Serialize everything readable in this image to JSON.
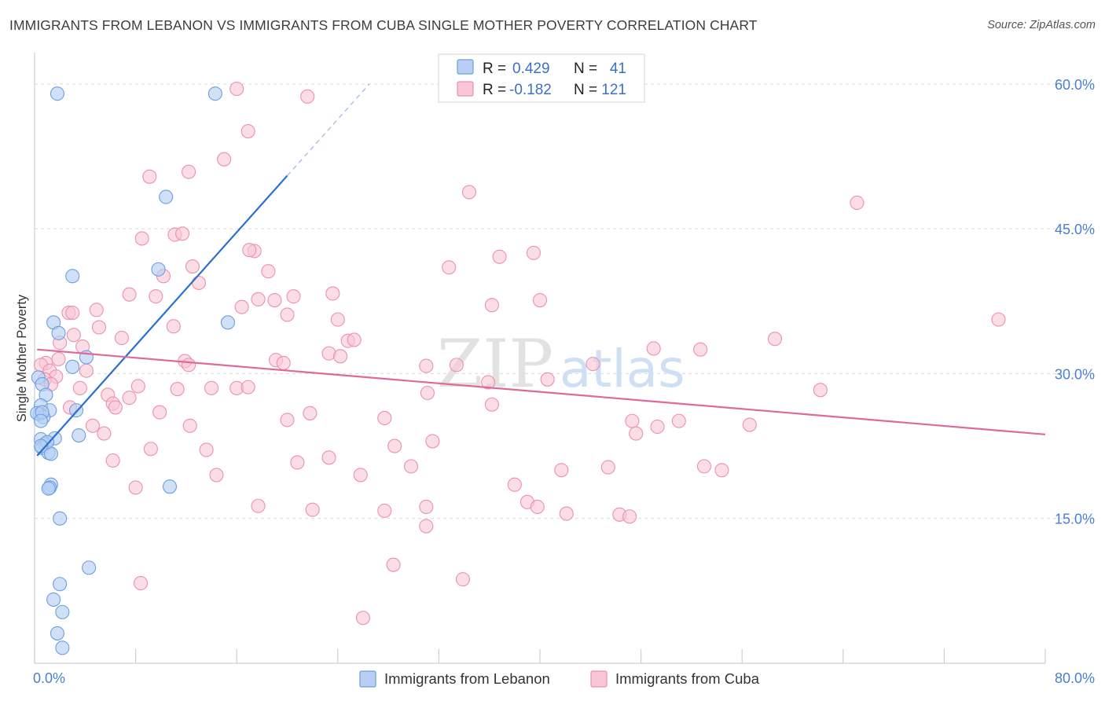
{
  "header": {
    "title": "IMMIGRANTS FROM LEBANON VS IMMIGRANTS FROM CUBA SINGLE MOTHER POVERTY CORRELATION CHART",
    "source": "Source: ZipAtlas.com"
  },
  "watermark": {
    "zip": "ZIP",
    "atlas": "atlas"
  },
  "colors": {
    "lebanon_fill": "#b7d0f2",
    "lebanon_stroke": "#6e9ee0",
    "lebanon_line": "#2a6fd0",
    "cuba_fill": "#f8c6d6",
    "cuba_stroke": "#ec90ae",
    "cuba_line": "#e0689a",
    "tick_label": "#4a7fd0",
    "grid": "#d9d9d9"
  },
  "legend_stats": [
    {
      "r_label": "R =",
      "r_value": "0.429",
      "n_label": "N =",
      "n_value": "41"
    },
    {
      "r_label": "R =",
      "r_value": "-0.182",
      "n_label": "N =",
      "n_value": "121"
    }
  ],
  "chart_data": {
    "type": "scatter",
    "title": "IMMIGRANTS FROM LEBANON VS IMMIGRANTS FROM CUBA SINGLE MOTHER POVERTY CORRELATION CHART",
    "xlabel": "",
    "ylabel": "Single Mother Poverty",
    "xlim": [
      0,
      80
    ],
    "ylim": [
      0,
      63
    ],
    "x_tick_labels": [
      "0.0%",
      "80.0%"
    ],
    "x_minor_ticks": [
      0,
      8,
      16,
      24,
      32,
      40,
      48,
      56,
      64,
      72,
      80
    ],
    "y_ticks": [
      15,
      30,
      45,
      60
    ],
    "y_tick_labels": [
      "15.0%",
      "30.0%",
      "45.0%",
      "60.0%"
    ],
    "grid": true,
    "legend_position": "bottom-center",
    "series": [
      {
        "name": "Immigrants from Lebanon",
        "R": 0.429,
        "N": 41,
        "trend": {
          "x0": 0.2,
          "y0": 21.5,
          "x1": 20.0,
          "y1": 50.5,
          "dash_to_x": 26.5,
          "dash_to_y": 60.0
        },
        "points": [
          [
            1.8,
            59.0
          ],
          [
            14.3,
            59.0
          ],
          [
            10.4,
            48.3
          ],
          [
            3.0,
            40.1
          ],
          [
            9.8,
            40.8
          ],
          [
            15.3,
            35.3
          ],
          [
            1.5,
            35.3
          ],
          [
            1.9,
            34.2
          ],
          [
            4.1,
            31.7
          ],
          [
            3.0,
            30.7
          ],
          [
            0.3,
            29.6
          ],
          [
            0.6,
            28.9
          ],
          [
            0.9,
            27.8
          ],
          [
            0.5,
            26.7
          ],
          [
            3.3,
            26.2
          ],
          [
            1.2,
            26.2
          ],
          [
            0.4,
            25.8
          ],
          [
            0.7,
            25.5
          ],
          [
            0.2,
            25.9
          ],
          [
            0.6,
            26.0
          ],
          [
            0.5,
            25.1
          ],
          [
            3.5,
            23.6
          ],
          [
            1.6,
            23.3
          ],
          [
            0.5,
            23.2
          ],
          [
            0.8,
            22.7
          ],
          [
            0.6,
            22.3
          ],
          [
            1.1,
            21.8
          ],
          [
            1.3,
            21.7
          ],
          [
            1.0,
            22.9
          ],
          [
            1.3,
            18.5
          ],
          [
            1.2,
            18.2
          ],
          [
            1.1,
            18.1
          ],
          [
            10.7,
            18.3
          ],
          [
            2.0,
            15.0
          ],
          [
            4.3,
            9.9
          ],
          [
            2.0,
            8.2
          ],
          [
            1.5,
            6.6
          ],
          [
            2.2,
            5.3
          ],
          [
            1.8,
            3.1
          ],
          [
            2.2,
            1.6
          ],
          [
            0.5,
            22.5
          ]
        ]
      },
      {
        "name": "Immigrants from Cuba",
        "R": -0.182,
        "N": 121,
        "trend": {
          "x0": 0.2,
          "y0": 32.5,
          "x1": 80.0,
          "y1": 23.7
        },
        "points": [
          [
            16.0,
            59.5
          ],
          [
            21.6,
            58.7
          ],
          [
            16.9,
            55.1
          ],
          [
            15.0,
            52.2
          ],
          [
            12.2,
            50.9
          ],
          [
            9.1,
            50.4
          ],
          [
            34.4,
            48.8
          ],
          [
            65.1,
            47.7
          ],
          [
            8.5,
            44.0
          ],
          [
            11.1,
            44.4
          ],
          [
            11.7,
            44.5
          ],
          [
            17.4,
            42.7
          ],
          [
            36.8,
            42.1
          ],
          [
            39.5,
            42.5
          ],
          [
            32.8,
            41.0
          ],
          [
            12.5,
            41.1
          ],
          [
            18.5,
            40.6
          ],
          [
            10.2,
            40.1
          ],
          [
            13.0,
            39.4
          ],
          [
            7.5,
            38.2
          ],
          [
            9.6,
            38.0
          ],
          [
            17.7,
            37.7
          ],
          [
            19.0,
            37.6
          ],
          [
            20.5,
            38.0
          ],
          [
            23.6,
            38.3
          ],
          [
            36.2,
            37.1
          ],
          [
            40.0,
            37.6
          ],
          [
            16.4,
            36.9
          ],
          [
            4.9,
            36.6
          ],
          [
            2.7,
            36.3
          ],
          [
            3.0,
            36.3
          ],
          [
            20.0,
            36.1
          ],
          [
            24.0,
            35.6
          ],
          [
            76.3,
            35.6
          ],
          [
            11.0,
            34.9
          ],
          [
            5.1,
            34.8
          ],
          [
            3.1,
            34.0
          ],
          [
            6.9,
            33.7
          ],
          [
            24.8,
            33.4
          ],
          [
            25.3,
            33.5
          ],
          [
            58.6,
            33.6
          ],
          [
            2.0,
            33.2
          ],
          [
            3.8,
            32.8
          ],
          [
            49.0,
            32.6
          ],
          [
            52.7,
            32.5
          ],
          [
            23.3,
            32.1
          ],
          [
            24.2,
            31.8
          ],
          [
            11.9,
            31.3
          ],
          [
            19.1,
            31.4
          ],
          [
            1.9,
            31.5
          ],
          [
            0.9,
            31.1
          ],
          [
            0.5,
            30.9
          ],
          [
            12.2,
            30.9
          ],
          [
            19.7,
            31.1
          ],
          [
            31.0,
            30.8
          ],
          [
            44.2,
            31.0
          ],
          [
            4.1,
            30.3
          ],
          [
            1.2,
            30.3
          ],
          [
            1.7,
            29.7
          ],
          [
            0.8,
            29.4
          ],
          [
            35.9,
            29.1
          ],
          [
            40.6,
            29.4
          ],
          [
            1.3,
            28.9
          ],
          [
            8.2,
            28.7
          ],
          [
            3.6,
            28.5
          ],
          [
            14.0,
            28.5
          ],
          [
            16.0,
            28.5
          ],
          [
            11.3,
            28.4
          ],
          [
            16.9,
            28.6
          ],
          [
            62.2,
            28.3
          ],
          [
            31.1,
            28.0
          ],
          [
            5.8,
            27.8
          ],
          [
            7.5,
            27.5
          ],
          [
            6.2,
            26.9
          ],
          [
            6.4,
            26.5
          ],
          [
            36.2,
            26.8
          ],
          [
            2.8,
            26.5
          ],
          [
            9.9,
            26.0
          ],
          [
            21.8,
            25.9
          ],
          [
            20.0,
            25.2
          ],
          [
            27.7,
            25.4
          ],
          [
            47.3,
            25.1
          ],
          [
            51.0,
            25.1
          ],
          [
            12.3,
            24.6
          ],
          [
            4.6,
            24.6
          ],
          [
            49.3,
            24.5
          ],
          [
            56.6,
            24.7
          ],
          [
            5.5,
            23.8
          ],
          [
            47.6,
            23.8
          ],
          [
            31.5,
            23.0
          ],
          [
            28.5,
            22.5
          ],
          [
            13.6,
            22.1
          ],
          [
            9.2,
            22.2
          ],
          [
            23.3,
            21.3
          ],
          [
            6.2,
            21.0
          ],
          [
            20.8,
            20.8
          ],
          [
            29.8,
            20.4
          ],
          [
            45.4,
            20.3
          ],
          [
            53.0,
            20.4
          ],
          [
            41.7,
            20.0
          ],
          [
            54.4,
            20.0
          ],
          [
            14.4,
            19.5
          ],
          [
            25.8,
            19.5
          ],
          [
            38.0,
            18.5
          ],
          [
            8.0,
            18.2
          ],
          [
            39.0,
            16.7
          ],
          [
            17.7,
            16.3
          ],
          [
            31.0,
            16.2
          ],
          [
            39.8,
            16.2
          ],
          [
            22.0,
            15.9
          ],
          [
            27.7,
            15.8
          ],
          [
            42.1,
            15.5
          ],
          [
            46.3,
            15.4
          ],
          [
            47.1,
            15.2
          ],
          [
            31.0,
            14.2
          ],
          [
            28.4,
            10.2
          ],
          [
            33.9,
            8.7
          ],
          [
            8.4,
            8.3
          ],
          [
            26.0,
            4.7
          ],
          [
            33.4,
            30.9
          ],
          [
            17.0,
            42.8
          ]
        ]
      }
    ]
  },
  "bottom_legend": [
    {
      "label": "Immigrants from Lebanon"
    },
    {
      "label": "Immigrants from Cuba"
    }
  ]
}
